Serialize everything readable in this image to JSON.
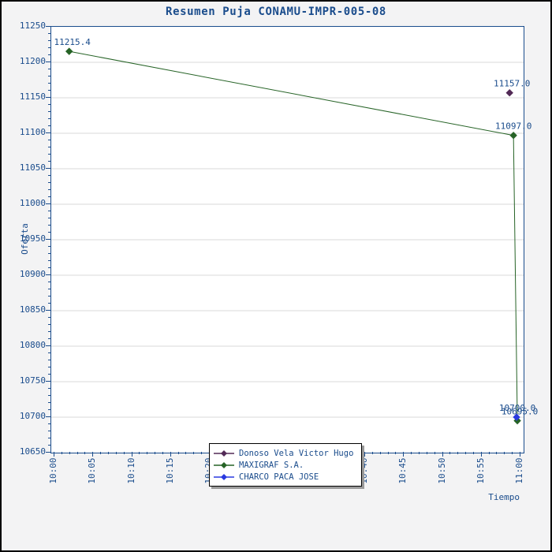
{
  "window": {
    "title": "Resumen Puja CONAMU-IMPR-005-08"
  },
  "colors": {
    "background": "#f3f3f4",
    "plot_background": "#ffffff",
    "axis_text": "#1a4c8c",
    "grid": "#d9d9d9",
    "outer_border": "#000000",
    "legend_background": "#ffffff",
    "legend_shadow": "#9a9a9a"
  },
  "chart_data": {
    "type": "line",
    "title": "Resumen Puja CONAMU-IMPR-005-08",
    "xlabel": "Tiempo",
    "ylabel": "Oferta",
    "x_axis": {
      "start": "10:00",
      "end": "11:00",
      "major_tick_every_minutes": 5,
      "minor_tick_every_minutes": 1,
      "tick_labels": [
        "10:00",
        "10:05",
        "10:10",
        "10:15",
        "10:20",
        "10:25",
        "10:30",
        "10:35",
        "10:40",
        "10:45",
        "10:50",
        "10:55",
        "11:00"
      ],
      "tick_label_rotation_deg": -90
    },
    "y_axis": {
      "min": 10650,
      "max": 11250,
      "major_step": 50,
      "minor_step": 10,
      "tick_labels": [
        "11250",
        "11200",
        "11150",
        "11100",
        "11050",
        "11000",
        "10950",
        "10900",
        "10850",
        "10800",
        "10750",
        "10700",
        "10650"
      ]
    },
    "grid": {
      "horizontal_major": true,
      "vertical": false
    },
    "legend": {
      "position": "bottom-center-overlay"
    },
    "series": [
      {
        "name": "Donoso Vela Victor Hugo",
        "color": "#522a56",
        "marker": "diamond",
        "points": [
          {
            "time": "10:59",
            "minutes_after_10_00": 58.6,
            "value": 11157.0,
            "label": "11157.0",
            "label_dx": 3
          }
        ]
      },
      {
        "name": "MAXIGRAF S.A.",
        "color": "#266326",
        "marker": "diamond",
        "points": [
          {
            "time": "10:02",
            "minutes_after_10_00": 1.9,
            "value": 11215.4,
            "label": "11215.4",
            "label_dx": 4
          },
          {
            "time": "10:59",
            "minutes_after_10_00": 59.1,
            "value": 11097.0,
            "label": "11097.0",
            "label_dx": 0
          },
          {
            "time": "11:00",
            "minutes_after_10_00": 59.6,
            "value": 10695.0,
            "label": "10695.0",
            "label_dx": 3
          }
        ]
      },
      {
        "name": "CHARCO PACA JOSE",
        "color": "#2a3ae0",
        "marker": "diamond",
        "points": [
          {
            "time": "11:00",
            "minutes_after_10_00": 59.5,
            "value": 10700.0,
            "label": "10700.0",
            "label_dx": 1
          }
        ]
      }
    ]
  }
}
